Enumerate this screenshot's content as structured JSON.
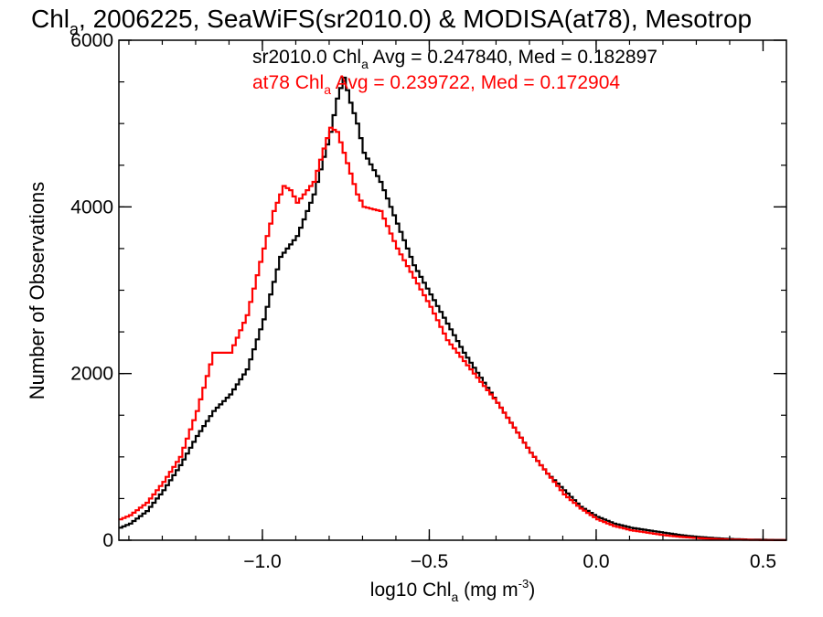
{
  "chart_data": {
    "type": "line",
    "title": {
      "pre": "Chl",
      "sub": "a",
      "post": ", 2006225, SeaWiFS(sr2010.0) & MODISA(at78), Mesotrop"
    },
    "xlabel": {
      "pre": "log10 Chl",
      "sub": "a",
      "mid": " (mg m",
      "sup": "-3",
      "post": ")"
    },
    "ylabel": "Number of Observations",
    "xlim": [
      -1.43,
      0.57
    ],
    "ylim": [
      0,
      6000
    ],
    "x_ticks": [
      {
        "value": -1.0,
        "label": "−1.0"
      },
      {
        "value": -0.5,
        "label": "−0.5"
      },
      {
        "value": 0.0,
        "label": "0.0"
      },
      {
        "value": 0.5,
        "label": "0.5"
      }
    ],
    "y_ticks": [
      {
        "value": 0,
        "label": "0"
      },
      {
        "value": 2000,
        "label": "2000"
      },
      {
        "value": 4000,
        "label": "4000"
      },
      {
        "value": 6000,
        "label": "6000"
      }
    ],
    "legend_placement": "top-center",
    "series": [
      {
        "name": "sr2010.0",
        "color": "#000000",
        "legend": {
          "pre": "sr2010.0 Chl",
          "sub": "a",
          "post": " Avg = 0.247840, Med = 0.182897"
        },
        "x": [
          -1.43,
          -1.4,
          -1.35,
          -1.3,
          -1.25,
          -1.2,
          -1.15,
          -1.1,
          -1.05,
          -1.0,
          -0.95,
          -0.9,
          -0.85,
          -0.8,
          -0.78,
          -0.76,
          -0.74,
          -0.72,
          -0.7,
          -0.65,
          -0.6,
          -0.55,
          -0.5,
          -0.45,
          -0.4,
          -0.35,
          -0.3,
          -0.25,
          -0.2,
          -0.15,
          -0.1,
          -0.05,
          0.0,
          0.05,
          0.1,
          0.15,
          0.2,
          0.25,
          0.3,
          0.35,
          0.4,
          0.45,
          0.5,
          0.57
        ],
        "values": [
          150,
          200,
          350,
          600,
          900,
          1250,
          1550,
          1750,
          2050,
          2650,
          3400,
          3650,
          4150,
          4900,
          5300,
          5550,
          5250,
          5000,
          4650,
          4300,
          3800,
          3300,
          2950,
          2600,
          2250,
          1950,
          1650,
          1350,
          1050,
          800,
          600,
          400,
          280,
          200,
          150,
          120,
          90,
          60,
          40,
          25,
          15,
          8,
          5,
          2
        ]
      },
      {
        "name": "at78",
        "color": "#ff0000",
        "legend": {
          "pre": "at78 Chl",
          "sub": "a",
          "post": " Avg = 0.239722, Med = 0.172904"
        },
        "x": [
          -1.43,
          -1.4,
          -1.35,
          -1.3,
          -1.25,
          -1.2,
          -1.15,
          -1.1,
          -1.05,
          -1.0,
          -0.97,
          -0.94,
          -0.92,
          -0.9,
          -0.85,
          -0.82,
          -0.8,
          -0.78,
          -0.76,
          -0.74,
          -0.72,
          -0.7,
          -0.65,
          -0.6,
          -0.55,
          -0.5,
          -0.45,
          -0.4,
          -0.35,
          -0.3,
          -0.25,
          -0.2,
          -0.15,
          -0.1,
          -0.05,
          0.0,
          0.05,
          0.1,
          0.15,
          0.2,
          0.25,
          0.3,
          0.35,
          0.4,
          0.45,
          0.5,
          0.57
        ],
        "values": [
          250,
          300,
          450,
          700,
          1000,
          1550,
          2250,
          2250,
          2700,
          3500,
          3950,
          4250,
          4200,
          4050,
          4300,
          4700,
          4950,
          4900,
          4650,
          4400,
          4150,
          4000,
          3950,
          3500,
          3150,
          2800,
          2400,
          2150,
          1900,
          1650,
          1350,
          1050,
          800,
          550,
          380,
          250,
          170,
          120,
          90,
          60,
          40,
          25,
          15,
          8,
          5,
          2,
          1
        ]
      }
    ]
  }
}
